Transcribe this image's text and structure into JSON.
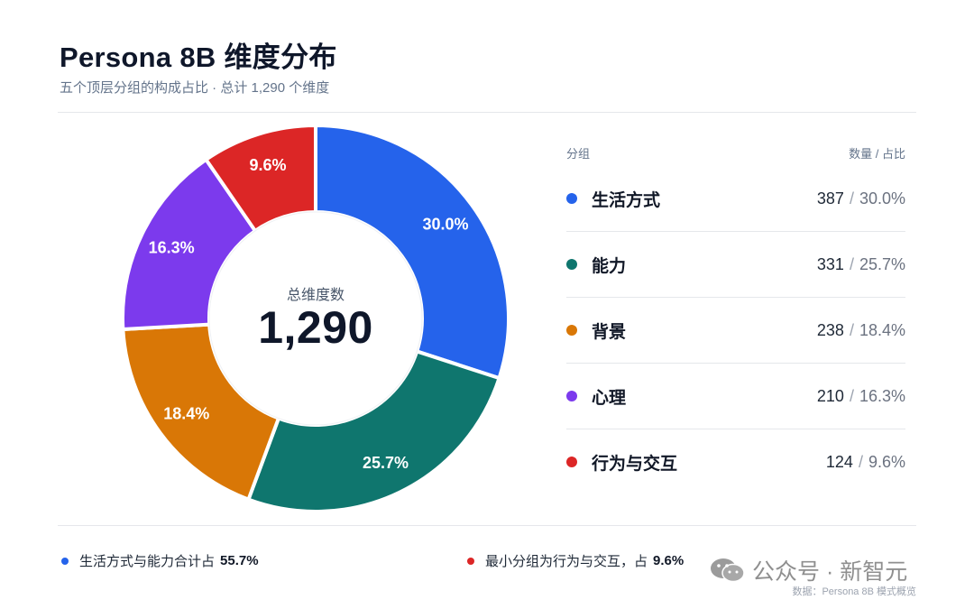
{
  "header": {
    "title": "Persona 8B 维度分布",
    "subtitle": "五个顶层分组的构成占比 · 总计 1,290 个维度"
  },
  "center": {
    "label": "总维度数",
    "value": "1,290"
  },
  "legend": {
    "col_group": "分组",
    "col_value": "数量 / 占比",
    "sep": "/",
    "rows": [
      {
        "name": "生活方式",
        "count": "387",
        "pct": "30.0%",
        "color": "#2563eb"
      },
      {
        "name": "能力",
        "count": "331",
        "pct": "25.7%",
        "color": "#0f766e"
      },
      {
        "name": "背景",
        "count": "238",
        "pct": "18.4%",
        "color": "#d97706"
      },
      {
        "name": "心理",
        "count": "210",
        "pct": "16.3%",
        "color": "#7c3aed"
      },
      {
        "name": "行为与交互",
        "count": "124",
        "pct": "9.6%",
        "color": "#dc2626"
      }
    ]
  },
  "footer": {
    "note1_text": "生活方式与能力合计占",
    "note1_value": "55.7%",
    "note1_color": "#2563eb",
    "note2_text": "最小分组为行为与交互，占",
    "note2_value": "9.6%",
    "note2_color": "#dc2626"
  },
  "watermark": {
    "text": "公众号 · 新智元",
    "icon": "wechat-icon"
  },
  "source": "数据：Persona 8B 模式概览",
  "chart_data": {
    "type": "pie",
    "title": "Persona 8B 维度分布",
    "total": 1290,
    "categories": [
      "生活方式",
      "能力",
      "背景",
      "心理",
      "行为与交互"
    ],
    "values": [
      387,
      331,
      238,
      210,
      124
    ],
    "labels": [
      "30.0%",
      "25.7%",
      "18.4%",
      "16.3%",
      "9.6%"
    ],
    "colors": [
      "#2563eb",
      "#0f766e",
      "#d97706",
      "#7c3aed",
      "#dc2626"
    ],
    "legend": "right"
  }
}
